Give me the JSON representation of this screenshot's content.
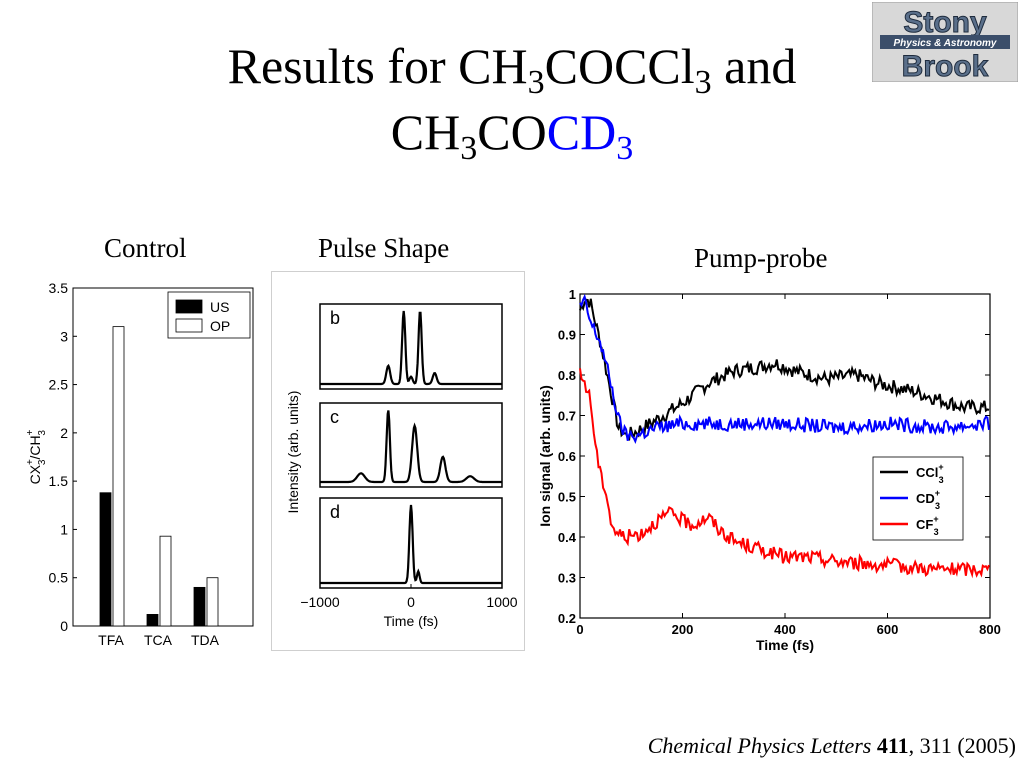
{
  "slide": {
    "title_line1": "Results for CH",
    "title_sub_a": "3",
    "title_mid": "COCCl",
    "title_sub_b": "3",
    "title_end": " and",
    "title_line2_a": "CH",
    "title_line2_sub": "3",
    "title_line2_b": "CO",
    "title_line2_blue": "CD",
    "title_line2_blue_sub": "3",
    "logo_top": "Stony",
    "logo_bottom": "Brook",
    "logo_band": "Physics & Astronomy",
    "label_control": "Control",
    "label_pulse": "Pulse Shape",
    "label_pump": "Pump-probe",
    "citation_journal": "Chemical Physics Letters",
    "citation_volume": "411",
    "citation_rest": ", 311 (2005)"
  },
  "chart_data": [
    {
      "type": "bar",
      "title": "",
      "categories": [
        "TFA",
        "TCA",
        "TDA"
      ],
      "series": [
        {
          "name": "US",
          "values": [
            1.38,
            0.12,
            0.4
          ],
          "color": "#000000"
        },
        {
          "name": "OP",
          "values": [
            3.1,
            0.93,
            0.5
          ],
          "color": "#ffffff"
        }
      ],
      "ylabel_parts": [
        "CX",
        "3",
        "+",
        "/CH",
        "3",
        "+"
      ],
      "ylim": [
        0,
        3.5
      ],
      "yticks": [
        "0",
        "0.5",
        "1",
        "1.5",
        "2",
        "2.5",
        "3",
        "3.5"
      ],
      "legend": "top-right"
    },
    {
      "type": "line",
      "panels": [
        "b",
        "c",
        "d"
      ],
      "xlabel": "Time (fs)",
      "ylabel": "Intensity (arb. units)",
      "xlim": [
        -1000,
        1000
      ],
      "xticks": [
        "−1000",
        "0",
        "1000"
      ],
      "series": [
        {
          "name": "b",
          "peaks": [
            [
              -250,
              0.25,
              30
            ],
            [
              -80,
              1.0,
              25
            ],
            [
              0,
              0.1,
              25
            ],
            [
              100,
              1.0,
              25
            ],
            [
              260,
              0.15,
              30
            ]
          ]
        },
        {
          "name": "c",
          "peaks": [
            [
              -550,
              0.12,
              60
            ],
            [
              -250,
              1.0,
              25
            ],
            [
              40,
              0.78,
              40
            ],
            [
              350,
              0.35,
              40
            ],
            [
              650,
              0.08,
              60
            ]
          ]
        },
        {
          "name": "d",
          "peaks": [
            [
              0,
              1.0,
              25
            ],
            [
              80,
              0.15,
              20
            ]
          ]
        }
      ]
    },
    {
      "type": "line",
      "xlabel": "Time (fs)",
      "ylabel": "Ion signal (arb. units)",
      "xlim": [
        0,
        800
      ],
      "ylim": [
        0.2,
        1.0
      ],
      "xticks": [
        "0",
        "200",
        "400",
        "600",
        "800"
      ],
      "yticks": [
        "0.2",
        "0.3",
        "0.4",
        "0.5",
        "0.6",
        "0.7",
        "0.8",
        "0.9",
        "1"
      ],
      "legend": "right",
      "series": [
        {
          "name": "CCl3+",
          "label": "CCl",
          "sub": "3",
          "sup": "+",
          "color": "#000000",
          "x": [
            0,
            10,
            20,
            40,
            60,
            75,
            90,
            110,
            150,
            200,
            250,
            300,
            350,
            380,
            420,
            480,
            540,
            580,
            650,
            700,
            750,
            800
          ],
          "y": [
            0.96,
            0.99,
            0.98,
            0.88,
            0.76,
            0.67,
            0.65,
            0.66,
            0.69,
            0.73,
            0.78,
            0.81,
            0.82,
            0.83,
            0.81,
            0.79,
            0.8,
            0.78,
            0.76,
            0.74,
            0.72,
            0.72
          ]
        },
        {
          "name": "CD3+",
          "label": "CD",
          "sub": "3",
          "sup": "+",
          "color": "#0000ff",
          "x": [
            0,
            10,
            20,
            40,
            60,
            75,
            90,
            110,
            150,
            200,
            300,
            400,
            500,
            600,
            700,
            800
          ],
          "y": [
            0.97,
            0.98,
            0.93,
            0.88,
            0.78,
            0.69,
            0.65,
            0.65,
            0.67,
            0.68,
            0.68,
            0.68,
            0.67,
            0.68,
            0.67,
            0.68
          ]
        },
        {
          "name": "CF3+",
          "label": "CF",
          "sub": "3",
          "sup": "+",
          "color": "#ff0000",
          "x": [
            0,
            10,
            20,
            30,
            40,
            50,
            60,
            70,
            90,
            120,
            150,
            180,
            200,
            220,
            250,
            270,
            300,
            350,
            400,
            450,
            500,
            600,
            700,
            800
          ],
          "y": [
            0.8,
            0.78,
            0.74,
            0.63,
            0.55,
            0.52,
            0.44,
            0.41,
            0.4,
            0.41,
            0.44,
            0.46,
            0.44,
            0.43,
            0.45,
            0.42,
            0.39,
            0.37,
            0.35,
            0.35,
            0.34,
            0.33,
            0.32,
            0.32
          ]
        }
      ]
    }
  ]
}
